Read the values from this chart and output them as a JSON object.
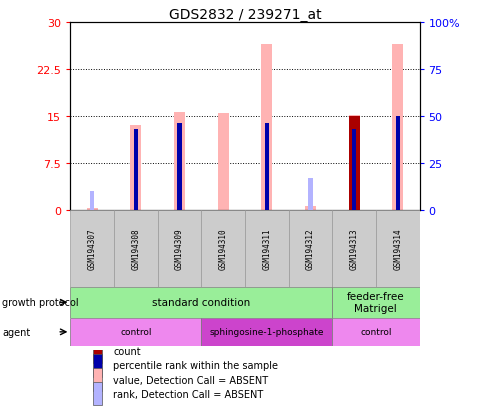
{
  "title": "GDS2832 / 239271_at",
  "samples": [
    "GSM194307",
    "GSM194308",
    "GSM194309",
    "GSM194310",
    "GSM194311",
    "GSM194312",
    "GSM194313",
    "GSM194314"
  ],
  "ylim_left": [
    0,
    30
  ],
  "ylim_right": [
    0,
    100
  ],
  "yticks_left": [
    0,
    7.5,
    15,
    22.5,
    30
  ],
  "yticks_right": [
    0,
    25,
    50,
    75,
    100
  ],
  "ytick_labels_left": [
    "0",
    "7.5",
    "15",
    "22.5",
    "30"
  ],
  "ytick_labels_right": [
    "0",
    "25",
    "50",
    "75",
    "100%"
  ],
  "value_absent": [
    0.4,
    13.5,
    15.7,
    15.5,
    26.5,
    0.7,
    15.2,
    26.5
  ],
  "count": [
    0.0,
    0.0,
    0.0,
    0.0,
    0.0,
    0.0,
    15.0,
    0.0
  ],
  "percentile_rank_sec": [
    0.0,
    43.0,
    46.0,
    0.0,
    46.0,
    0.0,
    43.0,
    50.0
  ],
  "rank_absent_sec": [
    10.0,
    0.0,
    0.0,
    0.0,
    0.0,
    17.0,
    0.0,
    0.0
  ],
  "color_value_absent": "#ffb3b3",
  "color_rank_absent": "#b3b3ff",
  "color_count": "#aa0000",
  "color_percentile": "#0000aa",
  "gp_groups": [
    {
      "label": "standard condition",
      "start": 0,
      "end": 6,
      "color": "#99ee99"
    },
    {
      "label": "feeder-free\nMatrigel",
      "start": 6,
      "end": 8,
      "color": "#99ee99"
    }
  ],
  "ag_groups": [
    {
      "label": "control",
      "start": 0,
      "end": 3,
      "color": "#ee88ee"
    },
    {
      "label": "sphingosine-1-phosphate",
      "start": 3,
      "end": 6,
      "color": "#cc44cc"
    },
    {
      "label": "control",
      "start": 6,
      "end": 8,
      "color": "#ee88ee"
    }
  ],
  "legend_items": [
    {
      "color": "#aa0000",
      "label": "count"
    },
    {
      "color": "#0000aa",
      "label": "percentile rank within the sample"
    },
    {
      "color": "#ffb3b3",
      "label": "value, Detection Call = ABSENT"
    },
    {
      "color": "#b3b3ff",
      "label": "rank, Detection Call = ABSENT"
    }
  ]
}
